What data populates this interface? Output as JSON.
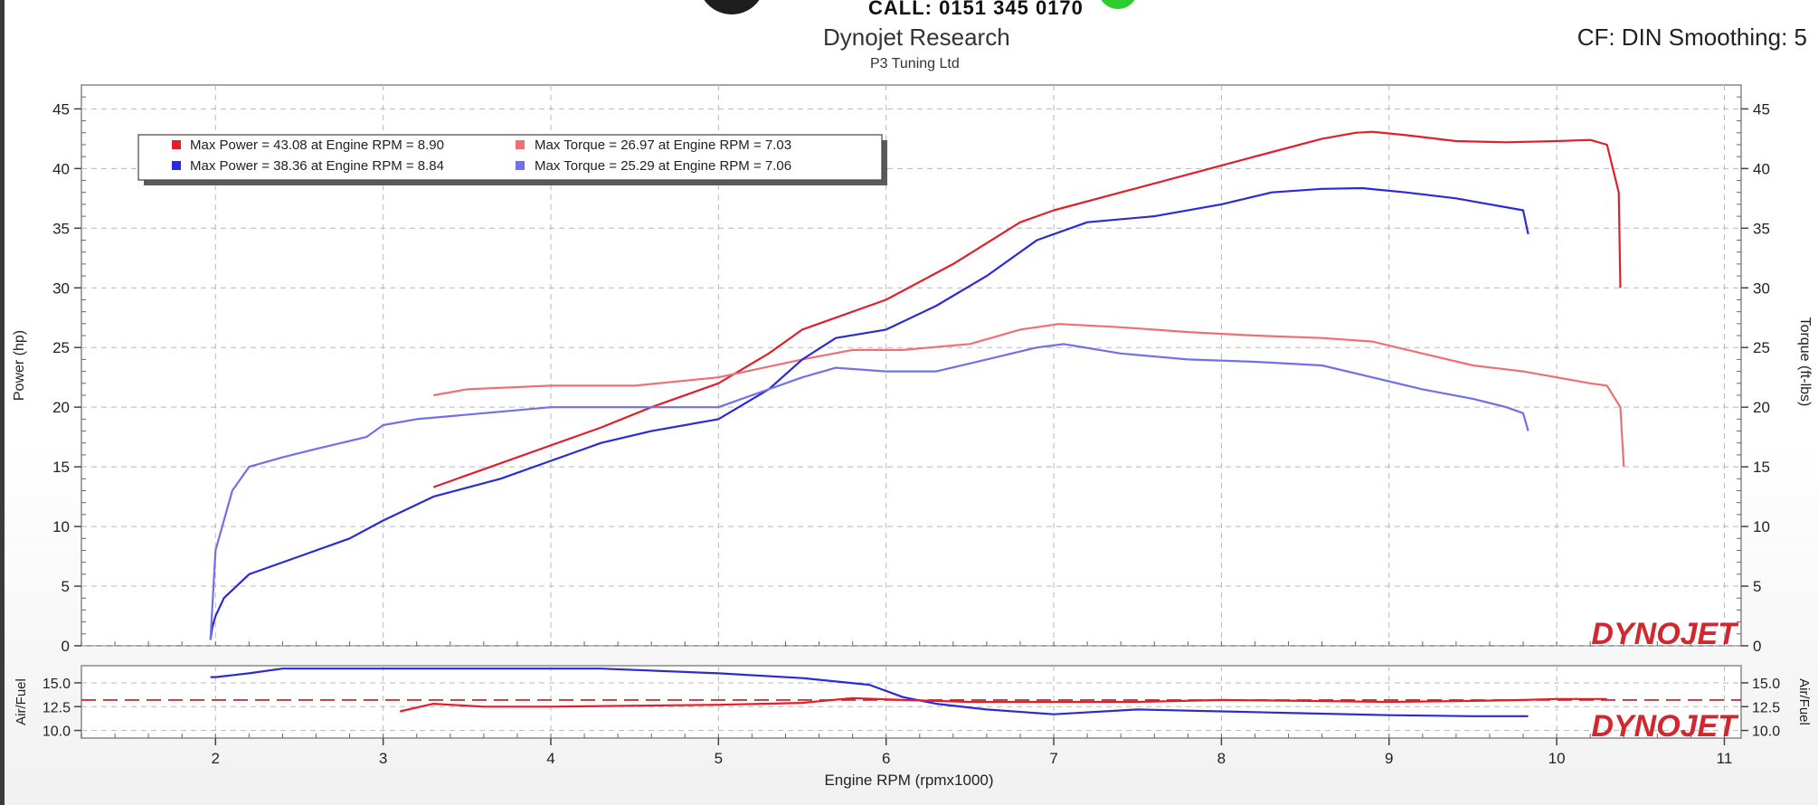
{
  "header": {
    "banner_text": "CALL: 0151 345 0170",
    "title": "Dynojet Research",
    "subtitle": "P3 Tuning Ltd",
    "cf_text": "CF: DIN Smoothing: 5"
  },
  "brand": {
    "logo_text": "DYNOJET",
    "logo_color": "#d0282e"
  },
  "colors": {
    "run1_power": "#e11f2a",
    "run1_torque": "#ef6f73",
    "run2_power": "#2a2ad8",
    "run2_torque": "#7070e8",
    "grid": "#b8b8b8",
    "afr_ref": "#b81d1d"
  },
  "chart_data": [
    {
      "type": "line",
      "xlabel": "Engine RPM (rpmx1000)",
      "ylabel": "Power (hp)",
      "y2label": "Torque (ft-lbs)",
      "xlim": [
        1.2,
        11.1
      ],
      "ylim": [
        0,
        47
      ],
      "xticks": [
        "2",
        "3",
        "4",
        "5",
        "6",
        "7",
        "8",
        "9",
        "10",
        "11"
      ],
      "yticks": [
        "0",
        "5",
        "10",
        "15",
        "20",
        "25",
        "30",
        "35",
        "40",
        "45"
      ],
      "grid": true,
      "legend": [
        {
          "label": "Max Power = 43.08 at Engine RPM = 8.90",
          "color": "#e11f2a"
        },
        {
          "label": "Max Torque = 26.97 at Engine RPM = 7.03",
          "color": "#ef6f73"
        },
        {
          "label": "Max Power = 38.36 at Engine RPM = 8.84",
          "color": "#2a2ad8"
        },
        {
          "label": "Max Torque = 25.29 at Engine RPM = 7.06",
          "color": "#7070e8"
        }
      ],
      "series": [
        {
          "color": "#e11f2a",
          "x": [
            3.3,
            3.6,
            4.0,
            4.3,
            4.6,
            5.0,
            5.3,
            5.5,
            5.7,
            6.0,
            6.4,
            6.8,
            7.0,
            7.4,
            7.8,
            8.2,
            8.6,
            8.8,
            8.9,
            9.1,
            9.4,
            9.7,
            10.0,
            10.2,
            10.3,
            10.37,
            10.38
          ],
          "y": [
            13.3,
            14.8,
            16.8,
            18.3,
            20.0,
            22.0,
            24.5,
            26.5,
            27.5,
            29.0,
            32.0,
            35.5,
            36.5,
            38.0,
            39.5,
            41.0,
            42.5,
            43.0,
            43.08,
            42.8,
            42.3,
            42.2,
            42.3,
            42.4,
            42.0,
            38.0,
            30.0
          ]
        },
        {
          "color": "#ef6f73",
          "x": [
            3.3,
            3.5,
            4.0,
            4.5,
            5.0,
            5.5,
            5.8,
            6.1,
            6.5,
            6.8,
            7.03,
            7.4,
            7.8,
            8.2,
            8.6,
            8.9,
            9.2,
            9.5,
            9.8,
            10.0,
            10.2,
            10.3,
            10.38,
            10.4
          ],
          "y": [
            21.0,
            21.5,
            21.8,
            21.8,
            22.5,
            24.0,
            24.8,
            24.8,
            25.3,
            26.5,
            26.97,
            26.7,
            26.3,
            26.0,
            25.8,
            25.5,
            24.5,
            23.5,
            23.0,
            22.5,
            22.0,
            21.8,
            20.0,
            15.0
          ]
        },
        {
          "color": "#2a2ad8",
          "x": [
            1.97,
            1.98,
            2.0,
            2.05,
            2.2,
            2.5,
            2.8,
            3.0,
            3.3,
            3.7,
            4.0,
            4.3,
            4.6,
            5.0,
            5.3,
            5.5,
            5.7,
            6.0,
            6.3,
            6.6,
            6.9,
            7.2,
            7.6,
            8.0,
            8.3,
            8.6,
            8.84,
            9.1,
            9.4,
            9.6,
            9.8,
            9.83
          ],
          "y": [
            0.5,
            1.5,
            2.5,
            4.0,
            6.0,
            7.5,
            9.0,
            10.5,
            12.5,
            14.0,
            15.5,
            17.0,
            18.0,
            19.0,
            21.5,
            24.0,
            25.8,
            26.5,
            28.5,
            31.0,
            34.0,
            35.5,
            36.0,
            37.0,
            38.0,
            38.3,
            38.36,
            38.0,
            37.5,
            37.0,
            36.5,
            34.5
          ]
        },
        {
          "color": "#7070e8",
          "x": [
            1.97,
            2.0,
            2.1,
            2.2,
            2.4,
            2.6,
            2.9,
            3.0,
            3.2,
            3.6,
            4.0,
            4.5,
            5.0,
            5.3,
            5.5,
            5.7,
            6.0,
            6.3,
            6.6,
            6.9,
            7.06,
            7.4,
            7.8,
            8.2,
            8.6,
            8.9,
            9.2,
            9.5,
            9.7,
            9.8,
            9.83
          ],
          "y": [
            0.5,
            8.0,
            13.0,
            15.0,
            15.8,
            16.5,
            17.5,
            18.5,
            19.0,
            19.5,
            20.0,
            20.0,
            20.0,
            21.5,
            22.5,
            23.3,
            23.0,
            23.0,
            24.0,
            25.0,
            25.29,
            24.5,
            24.0,
            23.8,
            23.5,
            22.5,
            21.5,
            20.7,
            20.0,
            19.5,
            18.0
          ]
        }
      ]
    },
    {
      "type": "line",
      "ylabel": "Air/Fuel",
      "ylim": [
        9.2,
        16.8
      ],
      "yticks": [
        "10.0",
        "12.5",
        "15.0"
      ],
      "reference_line": 13.2,
      "series": [
        {
          "color": "#2a2ad8",
          "x": [
            1.97,
            2.0,
            2.2,
            2.4,
            4.3,
            5.0,
            5.5,
            5.9,
            6.1,
            6.3,
            6.6,
            7.0,
            7.5,
            8.0,
            8.5,
            9.0,
            9.5,
            9.83
          ],
          "y": [
            15.6,
            15.6,
            16.0,
            16.5,
            16.5,
            16.0,
            15.5,
            14.8,
            13.5,
            12.8,
            12.2,
            11.7,
            12.2,
            12.0,
            11.8,
            11.6,
            11.5,
            11.5
          ]
        },
        {
          "color": "#e11f2a",
          "x": [
            3.1,
            3.3,
            3.6,
            4.0,
            4.5,
            5.0,
            5.5,
            5.8,
            6.1,
            6.5,
            7.0,
            7.5,
            8.0,
            8.5,
            9.0,
            9.5,
            9.8,
            10.0,
            10.3
          ],
          "y": [
            12.0,
            12.8,
            12.5,
            12.5,
            12.6,
            12.7,
            12.9,
            13.4,
            13.2,
            13.0,
            13.0,
            13.0,
            13.2,
            13.1,
            13.0,
            13.1,
            13.2,
            13.3,
            13.3
          ]
        }
      ]
    }
  ]
}
